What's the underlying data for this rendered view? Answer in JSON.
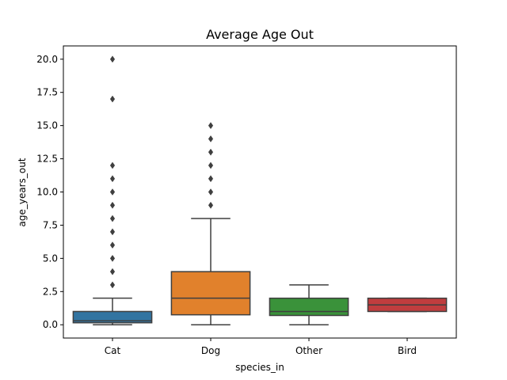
{
  "chart_data": {
    "type": "box",
    "title": "Average Age Out",
    "xlabel": "species_in",
    "ylabel": "age_years_out",
    "ylim": [
      -1,
      21
    ],
    "yticks": [
      0.0,
      2.5,
      5.0,
      7.5,
      10.0,
      12.5,
      15.0,
      17.5,
      20.0
    ],
    "ytick_labels": [
      "0.0",
      "2.5",
      "5.0",
      "7.5",
      "10.0",
      "12.5",
      "15.0",
      "17.5",
      "20.0"
    ],
    "categories": [
      "Cat",
      "Dog",
      "Other",
      "Bird"
    ],
    "grid": false,
    "boxes": [
      {
        "category": "Cat",
        "color": "#3274a1",
        "whisker_low": 0.0,
        "q1": 0.15,
        "median": 0.3,
        "q3": 1.0,
        "whisker_high": 2.0,
        "outliers": [
          3,
          4,
          5,
          6,
          7,
          8,
          9,
          10,
          11,
          12,
          17,
          20
        ]
      },
      {
        "category": "Dog",
        "color": "#e1812c",
        "whisker_low": 0.0,
        "q1": 0.75,
        "median": 2.0,
        "q3": 4.0,
        "whisker_high": 8.0,
        "outliers": [
          9,
          10,
          11,
          12,
          13,
          14,
          15
        ]
      },
      {
        "category": "Other",
        "color": "#3a923a",
        "whisker_low": 0.0,
        "q1": 0.7,
        "median": 1.0,
        "q3": 2.0,
        "whisker_high": 3.0,
        "outliers": []
      },
      {
        "category": "Bird",
        "color": "#c03d3e",
        "whisker_low": 1.0,
        "q1": 1.0,
        "median": 1.5,
        "q3": 2.0,
        "whisker_high": 2.0,
        "outliers": []
      }
    ]
  }
}
